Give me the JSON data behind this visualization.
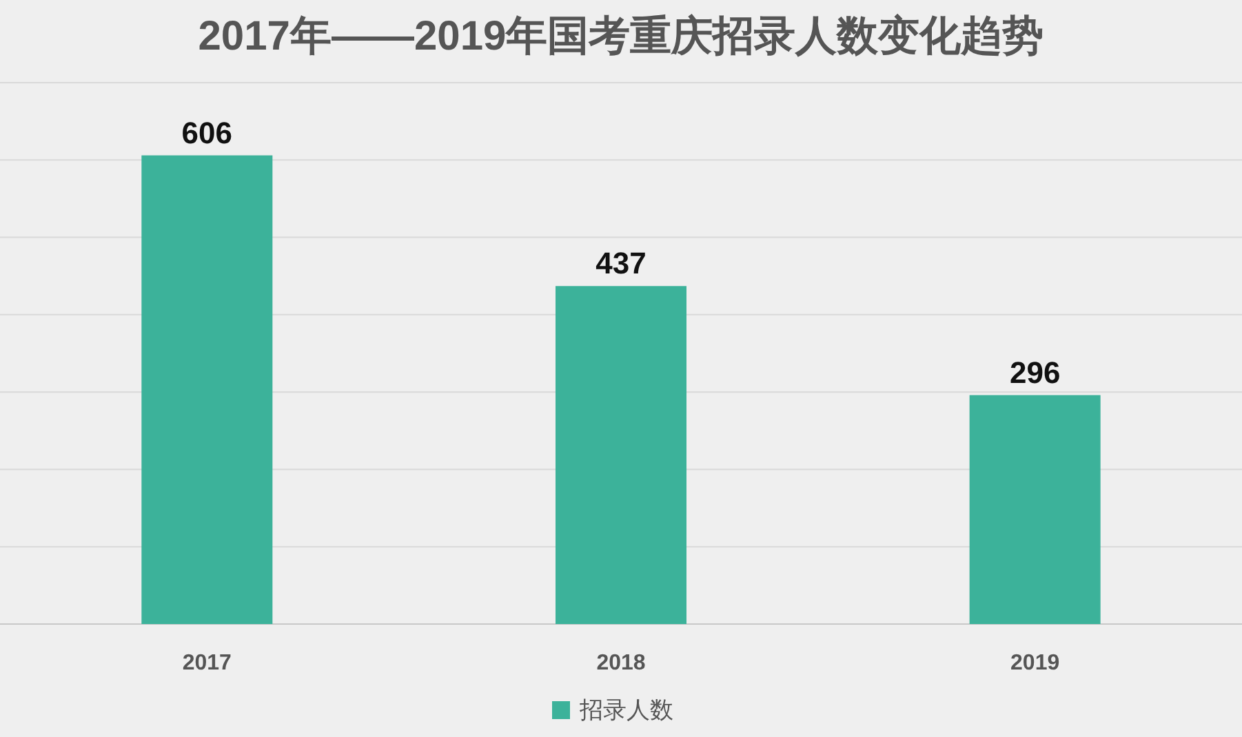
{
  "chart_data": {
    "type": "bar",
    "title": "2017年——2019年国考重庆招录人数变化趋势",
    "categories": [
      "2017",
      "2018",
      "2019"
    ],
    "series": [
      {
        "name": "招录人数",
        "color": "#3cb29a",
        "values": [
          606,
          437,
          296
        ]
      }
    ],
    "ylim": [
      0,
      700
    ],
    "yticks": [
      {
        "value": 0,
        "label": null
      },
      {
        "value": 100,
        "label": null
      },
      {
        "value": 200,
        "label": null
      },
      {
        "value": 300,
        "label": null
      },
      {
        "value": 400,
        "label": null
      },
      {
        "value": 500,
        "label": null
      },
      {
        "value": 600,
        "label": null
      },
      {
        "value": 700,
        "label": null
      }
    ],
    "grid": "y",
    "legend": "bottom",
    "data_labels": true,
    "tick_labels": "x"
  }
}
